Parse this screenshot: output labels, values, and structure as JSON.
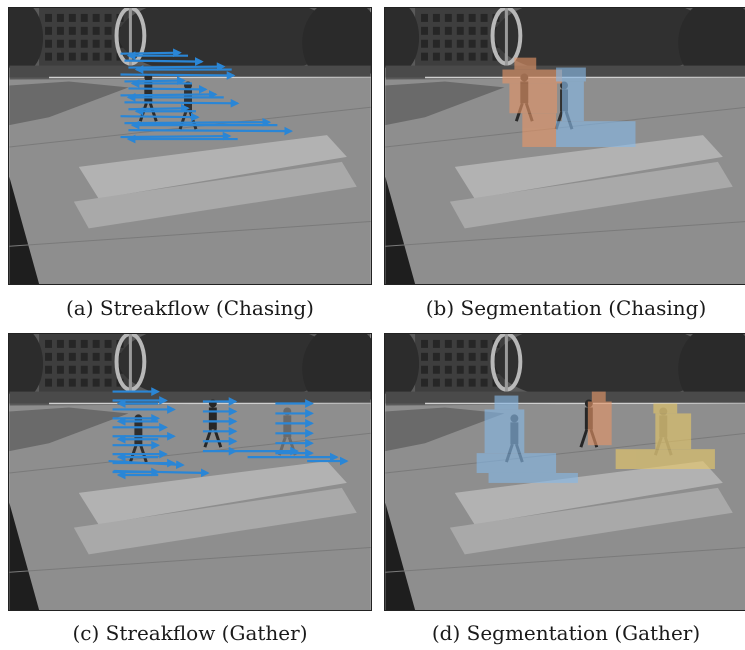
{
  "figure": {
    "panels": [
      {
        "caption": "(a) Streakflow (Chasing)"
      },
      {
        "caption": "(b) Segmentation (Chasing)"
      },
      {
        "caption": "(c) Streakflow (Gather)"
      },
      {
        "caption": "(d) Segmentation (Gather)"
      }
    ],
    "colors": {
      "flow_arrow": "#2a86d6",
      "segment_blue": "#86b8e6",
      "segment_orange": "#e69668",
      "segment_yellow": "#e8c868"
    }
  }
}
